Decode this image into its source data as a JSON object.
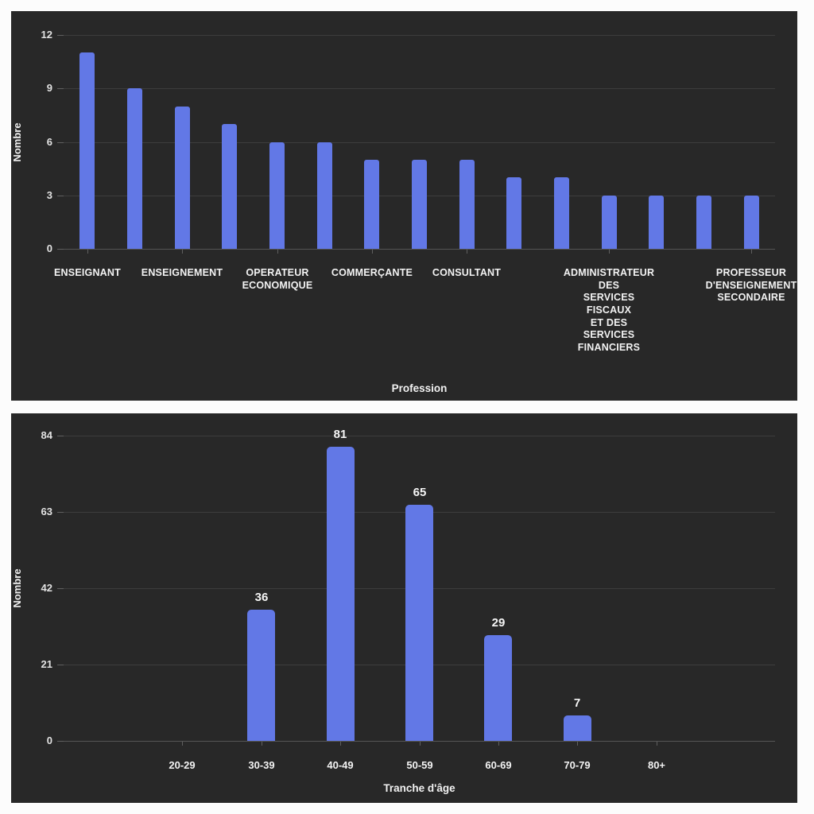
{
  "page": {
    "background_color": "#fcfcfc",
    "panel_background_color": "#282828",
    "bar_color": "#6278e6",
    "gridline_color": "#3d3d3d",
    "text_color": "#f3f3f3"
  },
  "chart_data": [
    {
      "name": "profession-histogram",
      "type": "bar",
      "xlabel": "Profession",
      "ylabel": "Nombre",
      "ylim": [
        0,
        12
      ],
      "yticks": [
        0,
        3,
        6,
        9,
        12
      ],
      "grid": true,
      "legend": "none",
      "value_labels": false,
      "pad_slots": 0,
      "categories": [
        "ENSEIGNANT",
        "",
        "ENSEIGNEMENT",
        "",
        "OPERATEUR\nECONOMIQUE",
        "",
        "COMMERÇANTE",
        "",
        "CONSULTANT",
        "",
        "",
        "ADMINISTRATEUR\nDES\nSERVICES\nFISCAUX\nET DES\nSERVICES\nFINANCIERS",
        "",
        "",
        "PROFESSEUR\nD'ENSEIGNEMENT\nSECONDAIRE"
      ],
      "values": [
        11,
        9,
        8,
        7,
        6,
        6,
        5,
        5,
        5,
        4,
        4,
        3,
        3,
        3,
        3
      ]
    },
    {
      "name": "age-histogram",
      "type": "bar",
      "xlabel": "Tranche d'âge",
      "ylabel": "Nombre",
      "ylim": [
        0,
        84
      ],
      "yticks": [
        0,
        21,
        42,
        63,
        84
      ],
      "grid": true,
      "legend": "none",
      "value_labels": true,
      "pad_slots": 1,
      "categories": [
        "20-29",
        "30-39",
        "40-49",
        "50-59",
        "60-69",
        "70-79",
        "80+"
      ],
      "values": [
        0,
        36,
        81,
        65,
        29,
        7,
        0
      ]
    }
  ]
}
